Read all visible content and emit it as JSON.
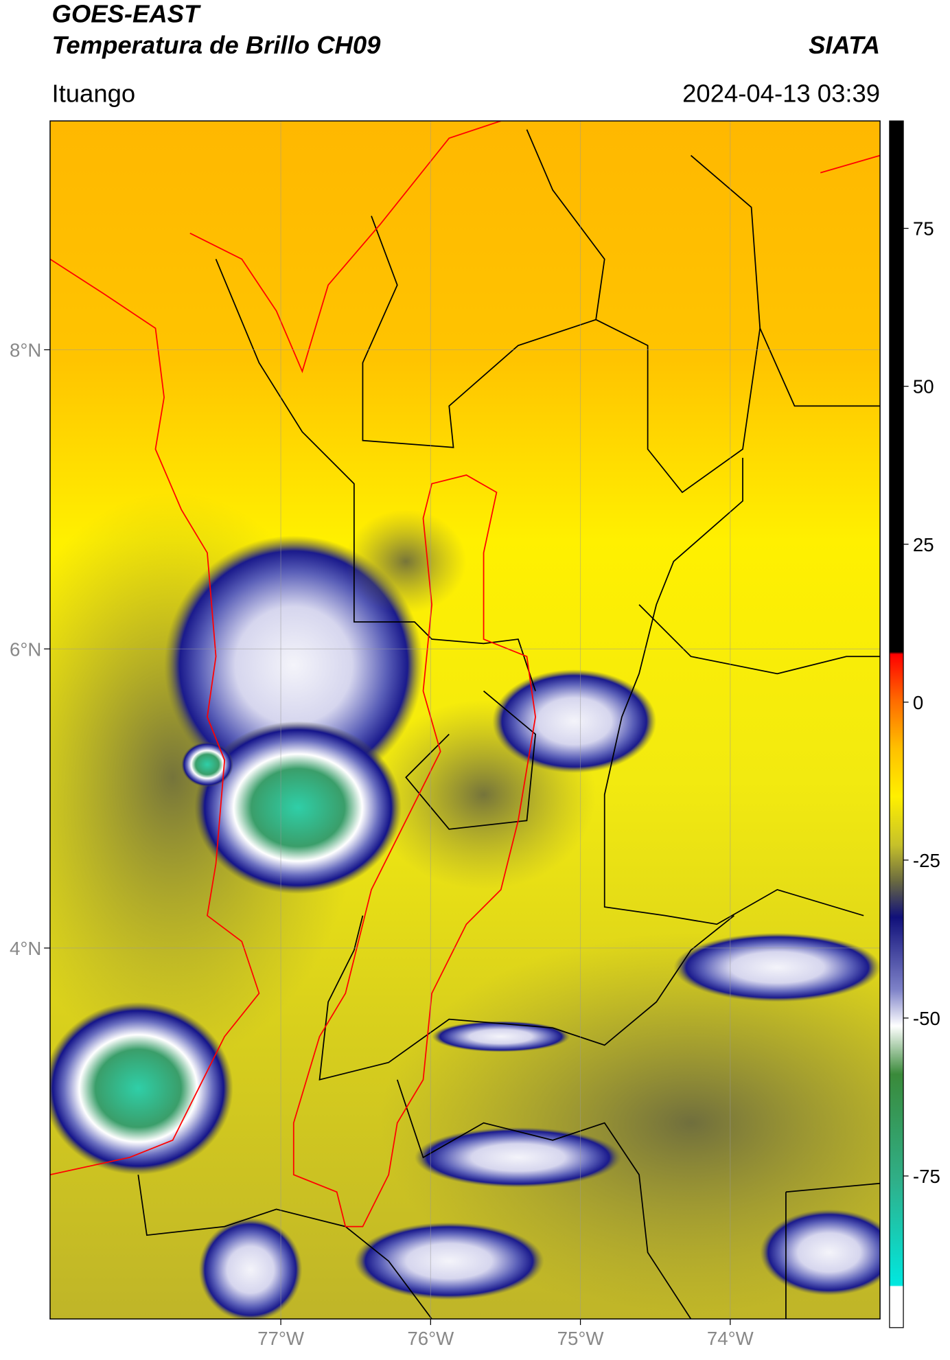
{
  "header": {
    "satellite": "GOES-EAST",
    "product": "Temperatura de Brillo CH09",
    "agency": "SIATA",
    "region": "Ituango",
    "datetime": "2024-04-13 03:39"
  },
  "map": {
    "xlim": [
      -78.54,
      -73.0
    ],
    "ylim": [
      1.52,
      9.53
    ],
    "xticks": [
      {
        "value": -77,
        "label": "77°W"
      },
      {
        "value": -76,
        "label": "76°W"
      },
      {
        "value": -75,
        "label": "75°W"
      },
      {
        "value": -74,
        "label": "74°W"
      }
    ],
    "yticks": [
      {
        "value": 8,
        "label": "8°N"
      },
      {
        "value": 6,
        "label": "6°N"
      },
      {
        "value": 4,
        "label": "4°N"
      }
    ],
    "grid": true
  },
  "colorbar": {
    "clim": [
      -99,
      92
    ],
    "ticks": [
      75,
      50,
      25,
      0,
      -25,
      -50,
      -75
    ]
  }
}
